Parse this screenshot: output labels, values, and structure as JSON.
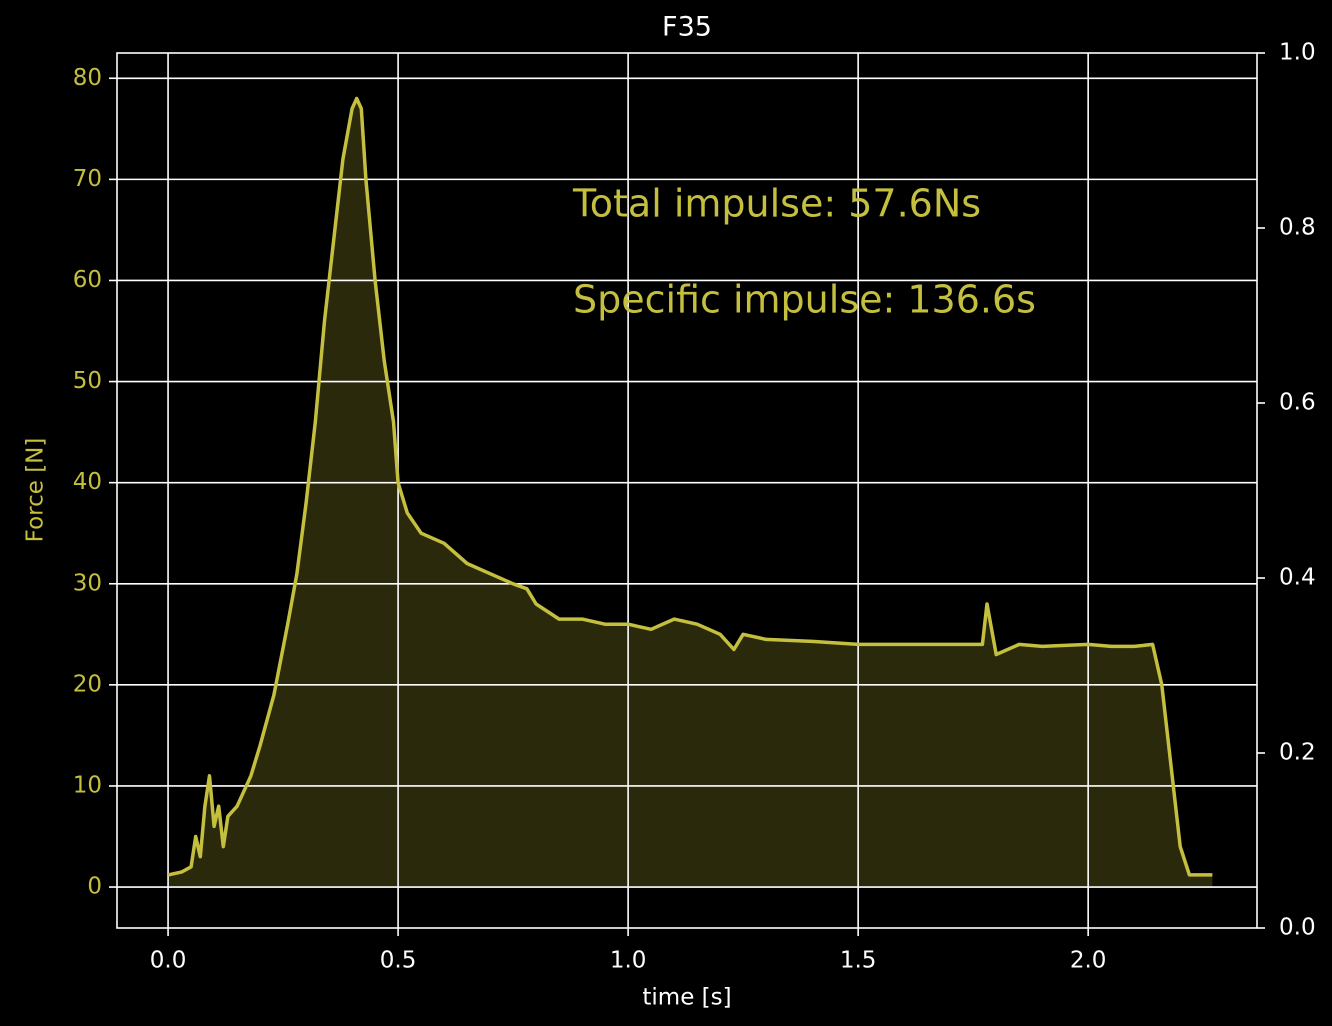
{
  "chart_data": {
    "type": "area",
    "title": "F35",
    "x_label": "time [s]",
    "y_label": "Force [N]",
    "annotations": [
      "Total impulse: 57.6Ns",
      "Specific impulse: 136.6s"
    ],
    "color": "#c4bf3e",
    "fill_color": "#2a290c",
    "grid": true,
    "xlim": [
      -0.111,
      2.367
    ],
    "xticks": [
      {
        "value": 0,
        "label": "0.0"
      },
      0.5,
      {
        "value": 1,
        "label": "1.0"
      },
      1.5,
      {
        "value": 2,
        "label": "2.0"
      }
    ],
    "ylim": [
      -4.05,
      82.5
    ],
    "yticks": [
      0,
      10,
      20,
      30,
      40,
      50,
      60,
      70,
      80
    ],
    "y2lim": [
      0,
      1
    ],
    "y2ticks": [
      {
        "value": 0,
        "label": "0.0"
      },
      0.2,
      0.4,
      0.6,
      0.8,
      {
        "value": 1,
        "label": "1.0"
      }
    ],
    "x": [
      0.0,
      0.03,
      0.05,
      0.06,
      0.07,
      0.08,
      0.09,
      0.1,
      0.11,
      0.12,
      0.13,
      0.15,
      0.18,
      0.2,
      0.23,
      0.26,
      0.28,
      0.3,
      0.32,
      0.34,
      0.36,
      0.38,
      0.4,
      0.41,
      0.42,
      0.43,
      0.45,
      0.47,
      0.49,
      0.5,
      0.52,
      0.55,
      0.6,
      0.65,
      0.7,
      0.75,
      0.78,
      0.8,
      0.85,
      0.9,
      0.95,
      1.0,
      1.05,
      1.1,
      1.15,
      1.2,
      1.23,
      1.25,
      1.3,
      1.4,
      1.5,
      1.6,
      1.7,
      1.77,
      1.78,
      1.8,
      1.85,
      1.9,
      2.0,
      2.05,
      2.1,
      2.14,
      2.16,
      2.18,
      2.2,
      2.22,
      2.25,
      2.27
    ],
    "values": [
      1.2,
      1.5,
      2,
      5,
      3,
      8,
      11,
      6,
      8,
      4,
      7,
      8,
      11,
      14,
      19,
      26,
      31,
      38,
      46,
      56,
      64,
      72,
      77,
      78,
      77,
      70,
      60,
      52,
      46,
      40,
      37,
      35,
      34,
      32,
      31,
      30,
      29.5,
      28,
      26.5,
      26.5,
      26,
      26,
      25.5,
      26.5,
      26,
      25,
      23.5,
      25,
      24.5,
      24.3,
      24,
      24,
      24,
      24,
      28,
      23,
      24,
      23.8,
      24,
      23.8,
      23.8,
      24,
      20,
      12,
      4,
      1.2,
      1.2,
      1.2
    ]
  }
}
